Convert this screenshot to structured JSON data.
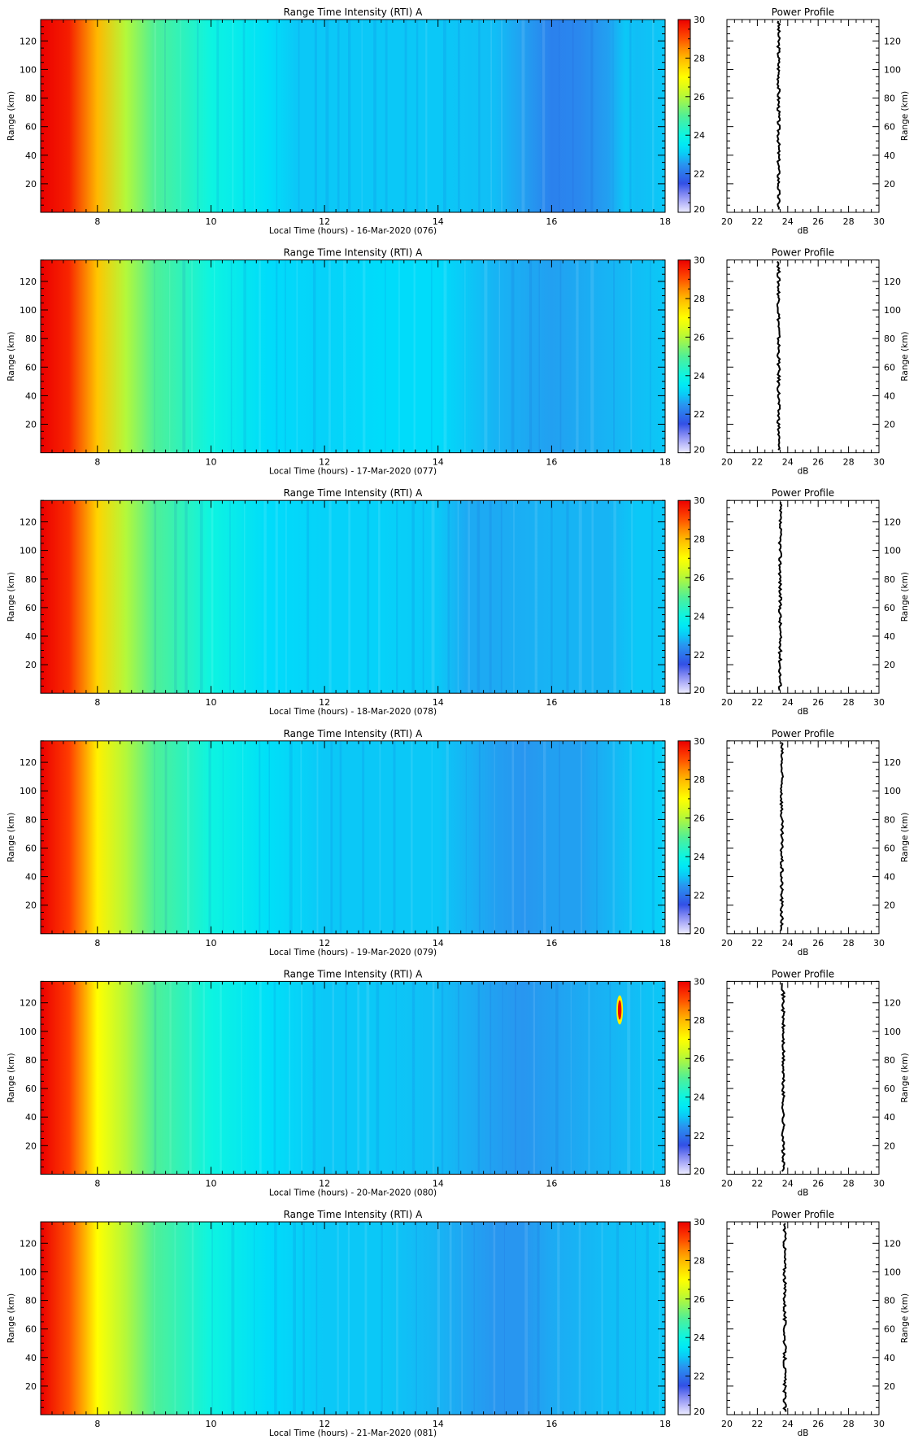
{
  "figure": {
    "description_colormap": "jet",
    "colorbar": {
      "min": 20,
      "max": 30,
      "ticks": [
        20,
        22,
        24,
        26,
        28,
        30
      ]
    }
  },
  "chart_data": [
    {
      "type": "heatmap",
      "title": "Range Time Intensity (RTI) A",
      "xlabel": "Local Time (hours) - 16-Mar-2020 (076)",
      "ylabel": "Range (km)",
      "xlim": [
        7.0,
        18.0
      ],
      "ylim": [
        0,
        135
      ],
      "xticks": [
        8,
        10,
        12,
        14,
        16,
        18
      ],
      "yticks": [
        20,
        40,
        60,
        80,
        100,
        120
      ],
      "clim": [
        20,
        30
      ],
      "time_profile": {
        "hours": [
          7.0,
          7.5,
          8.0,
          8.5,
          9.0,
          10.0,
          11.0,
          11.5,
          12.0,
          13.0,
          14.0,
          15.0,
          15.5,
          16.0,
          16.5,
          17.0,
          17.3,
          17.5,
          18.0
        ],
        "dB": [
          30.0,
          29.6,
          28.0,
          26.0,
          25.0,
          24.0,
          23.3,
          23.0,
          23.0,
          23.0,
          23.0,
          22.9,
          22.6,
          22.2,
          22.3,
          22.6,
          23.0,
          22.9,
          23.0
        ]
      },
      "profile": {
        "title": "Power Profile",
        "xlabel": "dB",
        "ylabel": "Range (km)",
        "xlim": [
          20,
          30
        ],
        "xticks": [
          20,
          22,
          24,
          26,
          28,
          30
        ],
        "mean_dB": 23.4
      }
    },
    {
      "type": "heatmap",
      "title": "Range Time Intensity (RTI) A",
      "xlabel": "Local Time (hours) - 17-Mar-2020 (077)",
      "ylabel": "Range (km)",
      "xlim": [
        7.0,
        18.0
      ],
      "ylim": [
        0,
        135
      ],
      "xticks": [
        8,
        10,
        12,
        14,
        16,
        18
      ],
      "yticks": [
        20,
        40,
        60,
        80,
        100,
        120
      ],
      "clim": [
        20,
        30
      ],
      "time_profile": {
        "hours": [
          7.0,
          7.5,
          8.0,
          8.5,
          9.0,
          10.0,
          11.0,
          12.0,
          13.0,
          14.0,
          15.0,
          16.0,
          17.0,
          18.0
        ],
        "dB": [
          30.0,
          29.5,
          27.8,
          26.0,
          25.0,
          24.0,
          23.2,
          23.1,
          23.2,
          23.2,
          22.8,
          22.6,
          22.8,
          23.0
        ]
      },
      "profile": {
        "title": "Power Profile",
        "xlabel": "dB",
        "ylabel": "Range (km)",
        "xlim": [
          20,
          30
        ],
        "xticks": [
          20,
          22,
          24,
          26,
          28,
          30
        ],
        "mean_dB": 23.4
      }
    },
    {
      "type": "heatmap",
      "title": "Range Time Intensity (RTI) A",
      "xlabel": "Local Time (hours) - 18-Mar-2020 (078)",
      "ylabel": "Range (km)",
      "xlim": [
        7.0,
        18.0
      ],
      "ylim": [
        0,
        135
      ],
      "xticks": [
        8,
        10,
        12,
        14,
        16,
        18
      ],
      "yticks": [
        20,
        40,
        60,
        80,
        100,
        120
      ],
      "clim": [
        20,
        30
      ],
      "time_profile": {
        "hours": [
          7.0,
          7.5,
          8.0,
          8.5,
          9.0,
          10.0,
          11.0,
          12.0,
          13.0,
          14.0,
          14.5,
          15.0,
          16.0,
          17.0,
          17.5,
          18.0
        ],
        "dB": [
          30.0,
          29.4,
          27.6,
          26.0,
          25.0,
          24.0,
          23.2,
          23.1,
          23.1,
          23.0,
          22.7,
          22.7,
          22.8,
          22.8,
          23.0,
          23.0
        ]
      },
      "profile": {
        "title": "Power Profile",
        "xlabel": "dB",
        "ylabel": "Range (km)",
        "xlim": [
          20,
          30
        ],
        "xticks": [
          20,
          22,
          24,
          26,
          28,
          30
        ],
        "mean_dB": 23.5
      }
    },
    {
      "type": "heatmap",
      "title": "Range Time Intensity (RTI) A",
      "xlabel": "Local Time (hours) - 19-Mar-2020 (079)",
      "ylabel": "Range (km)",
      "xlim": [
        7.0,
        18.0
      ],
      "ylim": [
        0,
        135
      ],
      "xticks": [
        8,
        10,
        12,
        14,
        16,
        18
      ],
      "yticks": [
        20,
        40,
        60,
        80,
        100,
        120
      ],
      "clim": [
        20,
        30
      ],
      "time_profile": {
        "hours": [
          7.0,
          7.5,
          8.0,
          8.5,
          9.0,
          10.0,
          11.0,
          12.0,
          13.0,
          14.0,
          15.0,
          15.5,
          16.0,
          16.5,
          17.0,
          17.5,
          18.0
        ],
        "dB": [
          30.0,
          29.2,
          27.2,
          26.0,
          25.0,
          24.0,
          23.3,
          23.0,
          23.0,
          23.0,
          22.6,
          22.5,
          22.6,
          22.6,
          22.8,
          23.0,
          23.1
        ]
      },
      "profile": {
        "title": "Power Profile",
        "xlabel": "dB",
        "ylabel": "Range (km)",
        "xlim": [
          20,
          30
        ],
        "xticks": [
          20,
          22,
          24,
          26,
          28,
          30
        ],
        "mean_dB": 23.6
      }
    },
    {
      "type": "heatmap",
      "title": "Range Time Intensity (RTI) A",
      "xlabel": "Local Time (hours) - 20-Mar-2020 (080)",
      "ylabel": "Range (km)",
      "xlim": [
        7.0,
        18.0
      ],
      "ylim": [
        0,
        135
      ],
      "xticks": [
        8,
        10,
        12,
        14,
        16,
        18
      ],
      "yticks": [
        20,
        40,
        60,
        80,
        100,
        120
      ],
      "clim": [
        20,
        30
      ],
      "time_profile": {
        "hours": [
          7.0,
          7.5,
          8.0,
          8.5,
          9.0,
          10.0,
          11.0,
          12.0,
          13.0,
          14.0,
          15.0,
          15.5,
          16.0,
          17.0,
          18.0
        ],
        "dB": [
          30.0,
          29.2,
          27.0,
          26.0,
          25.0,
          24.0,
          23.3,
          23.0,
          23.0,
          22.9,
          22.6,
          22.5,
          22.6,
          22.8,
          23.0
        ]
      },
      "annotation": {
        "hour": 17.2,
        "range_km": 115,
        "peak_dB": 30
      },
      "profile": {
        "title": "Power Profile",
        "xlabel": "dB",
        "ylabel": "Range (km)",
        "xlim": [
          20,
          30
        ],
        "xticks": [
          20,
          22,
          24,
          26,
          28,
          30
        ],
        "mean_dB": 23.7
      }
    },
    {
      "type": "heatmap",
      "title": "Range Time Intensity (RTI) A",
      "xlabel": "Local Time (hours) - 21-Mar-2020 (081)",
      "ylabel": "Range (km)",
      "xlim": [
        7.0,
        18.0
      ],
      "ylim": [
        0,
        135
      ],
      "xticks": [
        8,
        10,
        12,
        14,
        16,
        18
      ],
      "yticks": [
        20,
        40,
        60,
        80,
        100,
        120
      ],
      "clim": [
        20,
        30
      ],
      "time_profile": {
        "hours": [
          7.0,
          7.5,
          8.0,
          8.5,
          9.0,
          10.0,
          11.0,
          12.0,
          13.0,
          14.0,
          15.0,
          15.5,
          16.0,
          17.0,
          18.0
        ],
        "dB": [
          30.0,
          29.0,
          27.0,
          26.0,
          25.0,
          24.0,
          23.2,
          23.0,
          23.0,
          22.8,
          22.5,
          22.5,
          22.7,
          22.9,
          23.0
        ]
      },
      "profile": {
        "title": "Power Profile",
        "xlabel": "dB",
        "ylabel": "Range (km)",
        "xlim": [
          20,
          30
        ],
        "xticks": [
          20,
          22,
          24,
          26,
          28,
          30
        ],
        "mean_dB": 23.8
      }
    }
  ]
}
